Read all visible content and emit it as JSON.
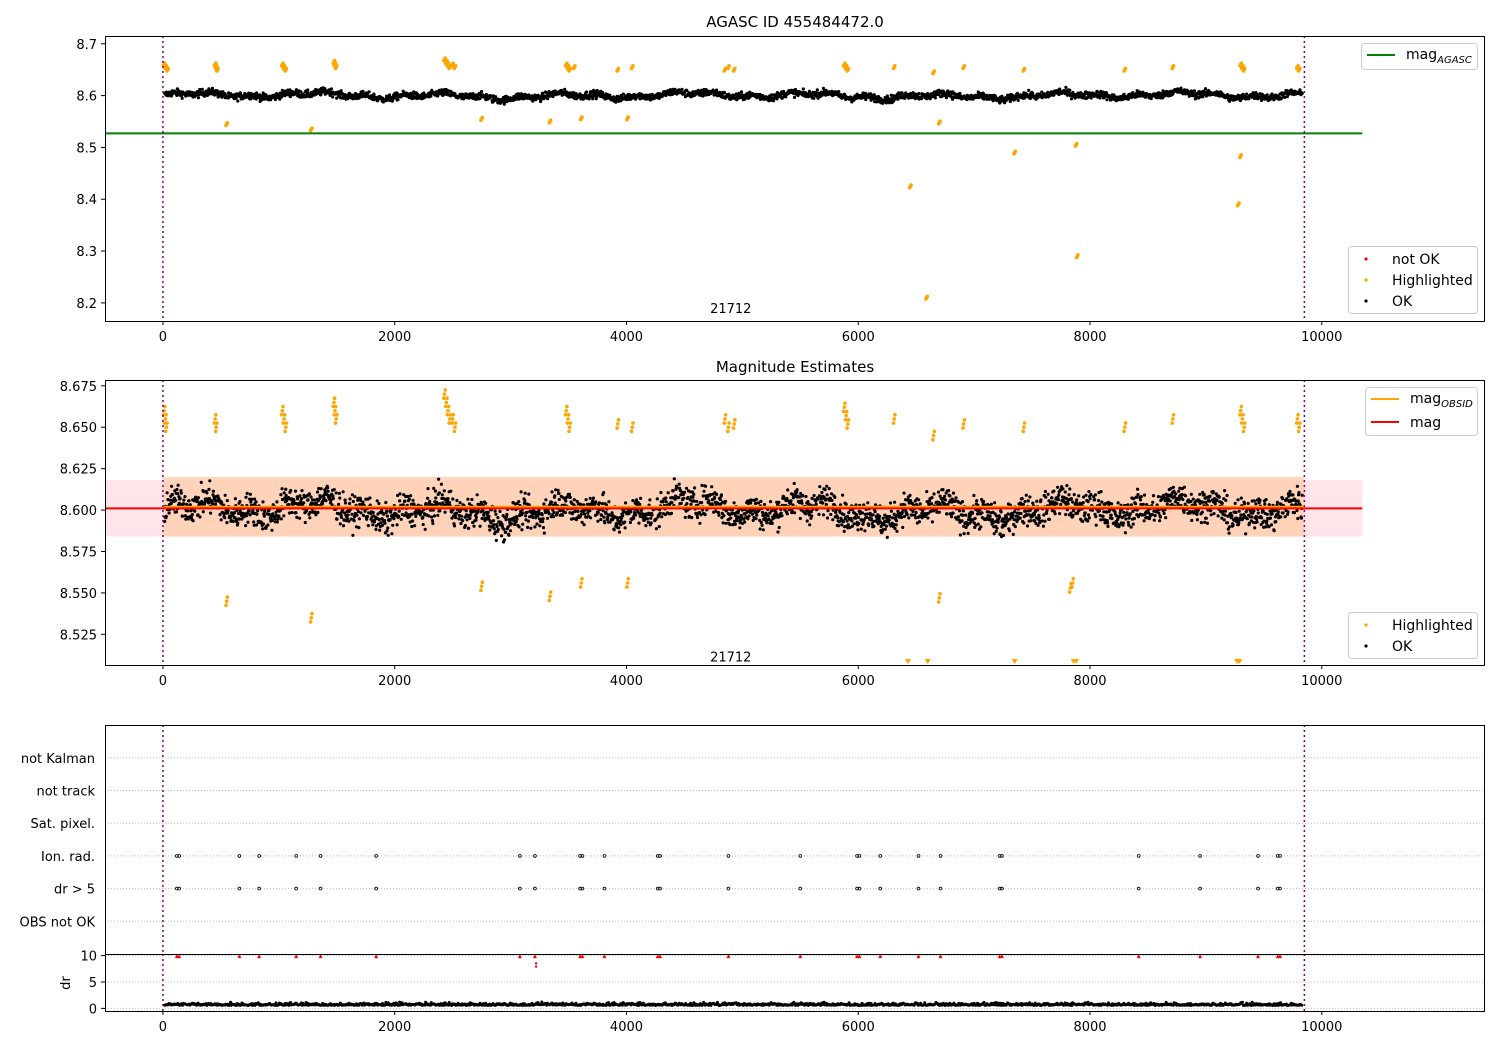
{
  "chart_data": [
    {
      "id": "top",
      "type": "scatter",
      "title": "AGASC ID 455484472.0",
      "xlim": [
        -500,
        11400
      ],
      "ylim": [
        8.165,
        8.715
      ],
      "xticks": [
        0,
        2000,
        4000,
        6000,
        8000,
        10000
      ],
      "yticks": [
        8.2,
        8.3,
        8.4,
        8.5,
        8.6,
        8.7
      ],
      "vlines": [
        0,
        9850
      ],
      "annotation": {
        "text": "21712",
        "x": 4900,
        "y": 8.19
      },
      "lines": [
        {
          "name": "mag",
          "subscript": "AGASC",
          "color": "#008000",
          "x": [
            -500,
            10350
          ],
          "y": [
            8.527,
            8.527
          ]
        }
      ],
      "legend_top": [
        {
          "label": "mag",
          "subscript": "AGASC",
          "color": "#008000"
        }
      ],
      "legend_bottom": [
        {
          "label": "not OK",
          "color": "#ff0000"
        },
        {
          "label": "Highlighted",
          "color": "#ffa500"
        },
        {
          "label": "OK",
          "color": "#000000"
        }
      ],
      "series": [
        {
          "name": "OK",
          "color": "#000000",
          "base": 8.6,
          "noise": 0.009
        },
        {
          "name": "Highlighted",
          "color": "#ffa500",
          "x": [
            10,
            25,
            40,
            450,
            460,
            470,
            1030,
            1045,
            1060,
            1475,
            1485,
            1495,
            2430,
            2445,
            2460,
            2475,
            2500,
            2520,
            3480,
            3495,
            3510,
            3550,
            3925,
            4050,
            4850,
            4880,
            4930,
            5880,
            5895,
            5910,
            6310,
            6650,
            6910,
            7430,
            8300,
            8715,
            9300,
            9315,
            9330,
            9790,
            9805,
            550,
            1280,
            2750,
            3340,
            3610,
            4010,
            6450,
            6590,
            6700,
            7350,
            7890,
            7880,
            9280,
            9300
          ],
          "y": [
            8.66,
            8.655,
            8.65,
            8.66,
            8.655,
            8.65,
            8.66,
            8.655,
            8.65,
            8.665,
            8.66,
            8.655,
            8.67,
            8.665,
            8.66,
            8.655,
            8.66,
            8.655,
            8.66,
            8.655,
            8.65,
            8.655,
            8.65,
            8.655,
            8.65,
            8.655,
            8.65,
            8.66,
            8.655,
            8.65,
            8.655,
            8.645,
            8.655,
            8.65,
            8.65,
            8.655,
            8.66,
            8.655,
            8.65,
            8.655,
            8.65,
            8.545,
            8.535,
            8.555,
            8.55,
            8.556,
            8.556,
            8.425,
            8.21,
            8.548,
            8.49,
            8.29,
            8.505,
            8.39,
            8.483
          ]
        }
      ]
    },
    {
      "id": "middle",
      "type": "scatter",
      "title": "Magnitude Estimates",
      "xlim": [
        -500,
        11400
      ],
      "ylim": [
        8.5065,
        8.6785
      ],
      "xticks": [
        0,
        2000,
        4000,
        6000,
        8000,
        10000
      ],
      "yticks": [
        8.525,
        8.55,
        8.575,
        8.6,
        8.625,
        8.65,
        8.675
      ],
      "vlines": [
        0,
        9850
      ],
      "annotation": {
        "text": "21712",
        "x": 4900,
        "y": 8.5115
      },
      "bands": [
        {
          "color": "#ffe0e6",
          "x": [
            -500,
            10350
          ],
          "y": [
            8.584,
            8.618
          ]
        },
        {
          "color": "#ffd0b0",
          "x": [
            0,
            9850
          ],
          "y": [
            8.584,
            8.62
          ]
        }
      ],
      "lines": [
        {
          "name": "mag",
          "subscript": "OBSID",
          "color": "#ffa500",
          "x": [
            0,
            9850
          ],
          "y": [
            8.602,
            8.602
          ]
        },
        {
          "name": "mag",
          "color": "#ff0000",
          "x": [
            -500,
            10350
          ],
          "y": [
            8.601,
            8.601
          ]
        }
      ],
      "legend_top": [
        {
          "label": "mag",
          "subscript": "OBSID",
          "color": "#ffa500"
        },
        {
          "label": "mag",
          "color": "#ff0000"
        }
      ],
      "legend_bottom": [
        {
          "label": "Highlighted",
          "color": "#ffa500"
        },
        {
          "label": "OK",
          "color": "#000000"
        }
      ],
      "outliers_below": {
        "color": "#ffa500",
        "x": [
          6430,
          6600,
          7350,
          7860,
          7880,
          9270,
          9290
        ]
      },
      "series": [
        {
          "name": "OK",
          "color": "#000000",
          "base": 8.6,
          "noise": 0.012
        },
        {
          "name": "Highlighted",
          "color": "#ffa500",
          "x": [
            10,
            20,
            30,
            450,
            460,
            1030,
            1045,
            1060,
            1475,
            1485,
            1495,
            2430,
            2445,
            2460,
            2475,
            2500,
            2520,
            3480,
            3495,
            3510,
            3925,
            4050,
            4850,
            4880,
            4930,
            5880,
            5895,
            5910,
            6310,
            6650,
            6910,
            7430,
            8300,
            8715,
            9300,
            9315,
            9330,
            9790,
            9805,
            550,
            1280,
            2750,
            3340,
            3610,
            4010,
            6700,
            7830,
            7850
          ],
          "y": [
            8.66,
            8.655,
            8.65,
            8.655,
            8.65,
            8.66,
            8.655,
            8.65,
            8.665,
            8.66,
            8.655,
            8.67,
            8.665,
            8.66,
            8.655,
            8.655,
            8.65,
            8.66,
            8.655,
            8.65,
            8.652,
            8.65,
            8.655,
            8.65,
            8.652,
            8.662,
            8.657,
            8.652,
            8.655,
            8.645,
            8.652,
            8.65,
            8.65,
            8.655,
            8.66,
            8.655,
            8.65,
            8.655,
            8.65,
            8.545,
            8.535,
            8.554,
            8.548,
            8.556,
            8.556,
            8.547,
            8.553,
            8.556
          ]
        }
      ]
    },
    {
      "id": "flags",
      "type": "scatter",
      "xlim": [
        -500,
        11400
      ],
      "categories": [
        "OBS not OK",
        "dr > 5",
        "Ion. rad.",
        "Sat. pixel.",
        "not track",
        "not Kalman"
      ],
      "vlines": [
        0,
        9850
      ],
      "flag_x": [
        120,
        140,
        660,
        830,
        1150,
        1360,
        1840,
        3080,
        3210,
        3600,
        3620,
        3810,
        4270,
        4290,
        4880,
        5500,
        5990,
        6010,
        6190,
        6520,
        6710,
        7220,
        7240,
        8420,
        8950,
        9450,
        9620,
        9640
      ],
      "flags": {
        "dr > 5": "flag_x",
        "Ion. rad.": "flag_x"
      }
    },
    {
      "id": "dr",
      "type": "scatter",
      "ylabel": "dr",
      "xlim": [
        -500,
        11400
      ],
      "ylim": [
        -0.5,
        10.3
      ],
      "xticks": [
        0,
        2000,
        4000,
        6000,
        8000,
        10000
      ],
      "yticks": [
        0,
        5,
        10
      ],
      "vlines": [
        0,
        9850
      ],
      "series": [
        {
          "name": "OK",
          "color": "#000000",
          "base": 0.55,
          "noise": 0.35
        },
        {
          "name": "not OK",
          "color": "#ff0000",
          "x_ref": "flag_x",
          "y": 9.9,
          "extra": [
            {
              "x": 3220,
              "y": 7.9
            },
            {
              "x": 3220,
              "y": 8.5
            }
          ]
        }
      ]
    }
  ]
}
